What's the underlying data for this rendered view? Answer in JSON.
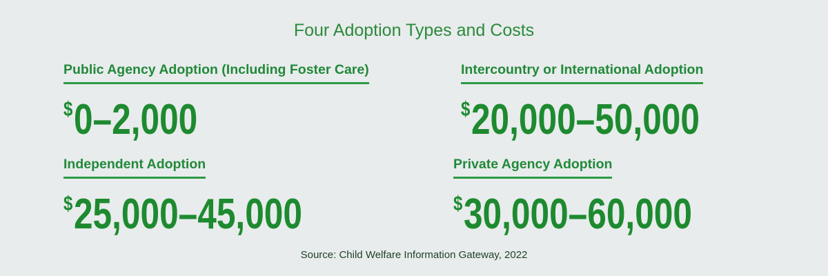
{
  "title": "Four Adoption Types and Costs",
  "items": [
    {
      "label": "Public Agency Adoption (Including Foster Care)",
      "currency": "$",
      "amount": "0–2,000"
    },
    {
      "label": "Intercountry or International Adoption",
      "currency": "$",
      "amount": "20,000–50,000"
    },
    {
      "label": "Independent Adoption",
      "currency": "$",
      "amount": "25,000–45,000"
    },
    {
      "label": "Private Agency Adoption",
      "currency": "$",
      "amount": "30,000–60,000"
    }
  ],
  "source": "Source: Child Welfare Information Gateway, 2022"
}
